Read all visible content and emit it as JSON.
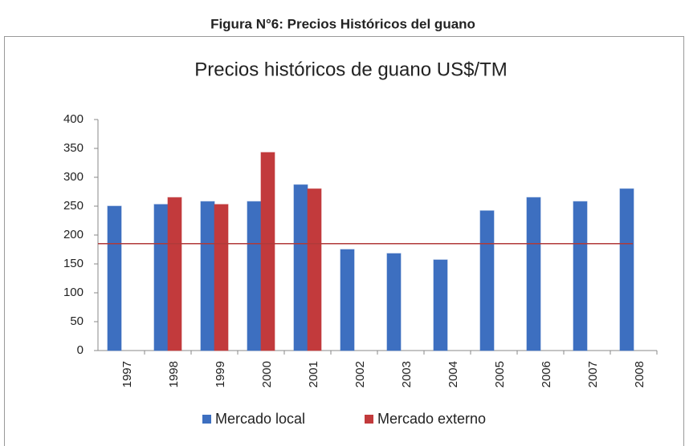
{
  "caption": "Figura N°6: Precios Históricos del guano",
  "chart_data": {
    "type": "bar",
    "title": "Precios históricos de guano US$/TM",
    "categories": [
      "1997",
      "1998",
      "1999",
      "2000",
      "2001",
      "2002",
      "2003",
      "2004",
      "2005",
      "2006",
      "2007",
      "2008"
    ],
    "series": [
      {
        "name": "Mercado local",
        "color": "#3d6fc0",
        "values": [
          250,
          253,
          258,
          258,
          287,
          175,
          168,
          157,
          242,
          265,
          258,
          280
        ]
      },
      {
        "name": "Mercado externo",
        "color": "#c23a3c",
        "values": [
          null,
          265,
          253,
          343,
          280,
          null,
          null,
          null,
          null,
          null,
          null,
          null
        ]
      }
    ],
    "ylim": [
      0,
      400
    ],
    "yticks": [
      0,
      50,
      100,
      150,
      200,
      250,
      300,
      350,
      400
    ],
    "reference_line": {
      "value": 185,
      "color": "#b03a3a"
    },
    "grid": false,
    "legend": "bottom"
  }
}
